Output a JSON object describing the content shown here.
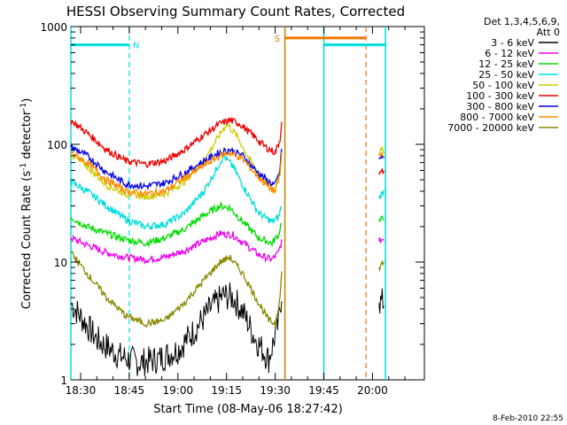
{
  "chart_data": {
    "type": "line",
    "title": "HESSI Observing Summary Count Rates, Corrected",
    "xlabel": "Start Time (08-May-06 18:27:42)",
    "ylabel_main": "Corrected Count Rate (s",
    "ylabel_sup1": "-1",
    "ylabel_mid": " detector",
    "ylabel_sup2": "-1",
    "ylabel_end": ")",
    "yscale": "log",
    "ylim": [
      1,
      1000
    ],
    "xlim_minutes": [
      1107,
      1216
    ],
    "xticks": [
      {
        "label": "18:30",
        "min": 1110
      },
      {
        "label": "18:45",
        "min": 1125
      },
      {
        "label": "19:00",
        "min": 1140
      },
      {
        "label": "19:15",
        "min": 1155
      },
      {
        "label": "19:30",
        "min": 1170
      },
      {
        "label": "19:45",
        "min": 1185
      },
      {
        "label": "20:00",
        "min": 1200
      }
    ],
    "yticks": [
      {
        "label": "1",
        "v": 1
      },
      {
        "label": "10",
        "v": 10
      },
      {
        "label": "100",
        "v": 100
      },
      {
        "label": "1000",
        "v": 1000
      }
    ],
    "legend_title": [
      "Det 1,3,4,5,6,9,",
      "Att 0"
    ],
    "legend_placement": "right",
    "series": [
      {
        "name": "3 - 6 keV",
        "color": "#000000",
        "points": [
          [
            1107,
            4.5
          ],
          [
            1115,
            2.2
          ],
          [
            1122,
            1.6
          ],
          [
            1128,
            1.4
          ],
          [
            1134,
            1.5
          ],
          [
            1140,
            1.8
          ],
          [
            1145,
            2.6
          ],
          [
            1150,
            4.0
          ],
          [
            1154,
            5.2
          ],
          [
            1157,
            5.0
          ],
          [
            1160,
            3.8
          ],
          [
            1164,
            2.2
          ],
          [
            1168,
            1.5
          ],
          [
            1171,
            3.0
          ],
          [
            1172,
            5.5
          ],
          [
            1202,
            4.5
          ],
          [
            1203.5,
            4.6
          ]
        ]
      },
      {
        "name": "6 - 12 keV",
        "color": "#ee00ee",
        "points": [
          [
            1107,
            16
          ],
          [
            1112,
            14
          ],
          [
            1118,
            12
          ],
          [
            1124,
            11
          ],
          [
            1130,
            10.5
          ],
          [
            1136,
            11
          ],
          [
            1142,
            12.5
          ],
          [
            1148,
            15
          ],
          [
            1153,
            17.5
          ],
          [
            1157,
            17
          ],
          [
            1161,
            14
          ],
          [
            1165,
            11.5
          ],
          [
            1169,
            10.5
          ],
          [
            1171,
            12
          ],
          [
            1172,
            15
          ],
          [
            1202,
            15
          ],
          [
            1203.5,
            16
          ]
        ]
      },
      {
        "name": "12 - 25 keV",
        "color": "#00dd00",
        "points": [
          [
            1107,
            24
          ],
          [
            1112,
            20
          ],
          [
            1118,
            17.5
          ],
          [
            1124,
            15.5
          ],
          [
            1130,
            14.5
          ],
          [
            1136,
            16
          ],
          [
            1142,
            19
          ],
          [
            1148,
            25
          ],
          [
            1153,
            30
          ],
          [
            1156,
            29
          ],
          [
            1160,
            22
          ],
          [
            1165,
            16
          ],
          [
            1169,
            14.5
          ],
          [
            1171,
            17
          ],
          [
            1172,
            22
          ],
          [
            1202,
            22
          ],
          [
            1203.5,
            24
          ]
        ]
      },
      {
        "name": "25 - 50 keV",
        "color": "#00dddd",
        "points": [
          [
            1107,
            48
          ],
          [
            1112,
            40
          ],
          [
            1118,
            30
          ],
          [
            1124,
            23
          ],
          [
            1130,
            20
          ],
          [
            1136,
            21
          ],
          [
            1142,
            26
          ],
          [
            1148,
            40
          ],
          [
            1152,
            62
          ],
          [
            1154,
            80
          ],
          [
            1157,
            65
          ],
          [
            1161,
            40
          ],
          [
            1165,
            26
          ],
          [
            1169,
            22
          ],
          [
            1171,
            24
          ],
          [
            1172,
            30
          ],
          [
            1202,
            35
          ],
          [
            1203.5,
            40
          ]
        ]
      },
      {
        "name": "50 - 100 keV",
        "color": "#cccc00",
        "points": [
          [
            1107,
            82
          ],
          [
            1112,
            65
          ],
          [
            1118,
            45
          ],
          [
            1124,
            38
          ],
          [
            1130,
            36
          ],
          [
            1136,
            38
          ],
          [
            1142,
            48
          ],
          [
            1148,
            72
          ],
          [
            1152,
            110
          ],
          [
            1155,
            150
          ],
          [
            1158,
            120
          ],
          [
            1162,
            75
          ],
          [
            1166,
            50
          ],
          [
            1170,
            40
          ],
          [
            1172,
            80
          ],
          [
            1202,
            85
          ],
          [
            1203.5,
            90
          ]
        ]
      },
      {
        "name": "100 - 300 keV",
        "color": "#ee0000",
        "points": [
          [
            1107,
            160
          ],
          [
            1112,
            125
          ],
          [
            1118,
            90
          ],
          [
            1124,
            72
          ],
          [
            1130,
            68
          ],
          [
            1136,
            72
          ],
          [
            1142,
            90
          ],
          [
            1148,
            120
          ],
          [
            1153,
            150
          ],
          [
            1156,
            160
          ],
          [
            1159,
            150
          ],
          [
            1163,
            120
          ],
          [
            1167,
            95
          ],
          [
            1170,
            85
          ],
          [
            1171.5,
            110
          ],
          [
            1172,
            160
          ],
          [
            1202,
            55
          ],
          [
            1203.5,
            60
          ]
        ]
      },
      {
        "name": "300 - 800 keV",
        "color": "#0000ee",
        "points": [
          [
            1107,
            95
          ],
          [
            1112,
            80
          ],
          [
            1118,
            58
          ],
          [
            1124,
            46
          ],
          [
            1130,
            44
          ],
          [
            1136,
            47
          ],
          [
            1142,
            57
          ],
          [
            1148,
            72
          ],
          [
            1153,
            86
          ],
          [
            1156,
            90
          ],
          [
            1160,
            80
          ],
          [
            1164,
            60
          ],
          [
            1168,
            48
          ],
          [
            1170,
            45
          ],
          [
            1171.5,
            60
          ],
          [
            1172,
            95
          ],
          [
            1202,
            75
          ],
          [
            1203.5,
            78
          ]
        ]
      },
      {
        "name": "800 - 7000 keV",
        "color": "#ff8800",
        "points": [
          [
            1107,
            85
          ],
          [
            1112,
            70
          ],
          [
            1118,
            50
          ],
          [
            1124,
            40
          ],
          [
            1130,
            38
          ],
          [
            1136,
            40
          ],
          [
            1142,
            52
          ],
          [
            1148,
            66
          ],
          [
            1153,
            80
          ],
          [
            1156,
            85
          ],
          [
            1160,
            75
          ],
          [
            1164,
            56
          ],
          [
            1168,
            43
          ],
          [
            1170,
            40
          ],
          [
            1171.5,
            55
          ],
          [
            1172,
            85
          ],
          [
            1202,
            80
          ],
          [
            1203.5,
            85
          ]
        ]
      },
      {
        "name": "7000 - 20000 keV",
        "color": "#888800",
        "points": [
          [
            1107,
            12
          ],
          [
            1112,
            8
          ],
          [
            1118,
            5
          ],
          [
            1124,
            3.5
          ],
          [
            1130,
            3.0
          ],
          [
            1136,
            3.2
          ],
          [
            1142,
            4.5
          ],
          [
            1148,
            7
          ],
          [
            1153,
            10
          ],
          [
            1156,
            11
          ],
          [
            1160,
            8
          ],
          [
            1164,
            5
          ],
          [
            1168,
            3.2
          ],
          [
            1170,
            3.0
          ],
          [
            1171.5,
            5
          ],
          [
            1172,
            8
          ],
          [
            1202,
            9
          ],
          [
            1203.5,
            10
          ]
        ]
      }
    ],
    "annotations": {
      "flag_N": {
        "label": "N",
        "color": "#00dddd",
        "x_start": 1107,
        "x_end": 1125,
        "y": 700
      },
      "flag_S": {
        "label": "S",
        "color": "#ee7700",
        "x_start": 1173,
        "x_end": 1198,
        "y": 800
      },
      "flag_N2": {
        "color": "#00dddd",
        "x_start": 1185,
        "x_end": 1204,
        "y": 700
      },
      "solid_cyan_lines": [
        1107,
        1185,
        1204
      ],
      "dashed_cyan_lines": [
        1125,
        1204
      ],
      "solid_orange_lines": [
        1173
      ],
      "dashed_orange_lines": [
        1198
      ]
    },
    "footer_date": "8-Feb-2010 22:55"
  }
}
